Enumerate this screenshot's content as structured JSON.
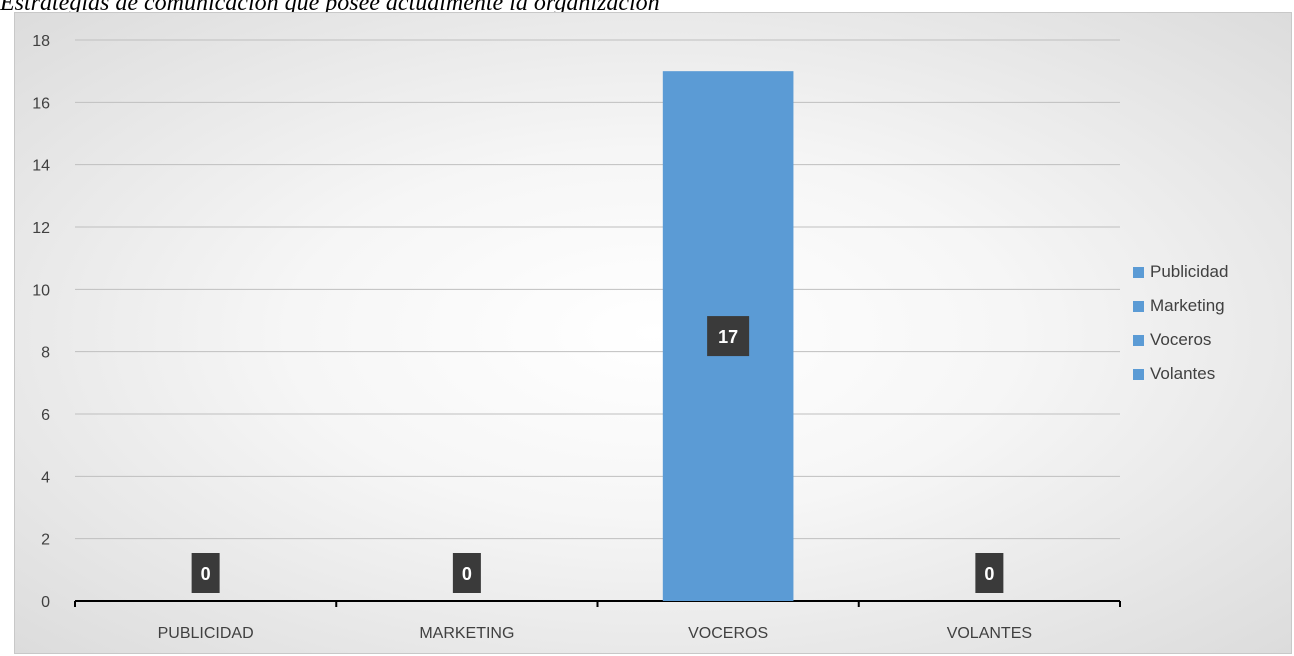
{
  "title": "Estrategias de comunicación que posee actualmente la organización",
  "colors": {
    "bar": "#5b9bd5",
    "label_bg": "#3a3a3a",
    "grid": "#bfbfbf",
    "axis": "#000000"
  },
  "chart_data": {
    "type": "bar",
    "categories": [
      "PUBLICIDAD",
      "MARKETING",
      "VOCEROS",
      "VOLANTES"
    ],
    "values": [
      0,
      0,
      17,
      0
    ],
    "data_labels": [
      "0",
      "0",
      "17",
      "0"
    ],
    "ylim": [
      0,
      18
    ],
    "yticks": [
      "0",
      "2",
      "4",
      "6",
      "8",
      "10",
      "12",
      "14",
      "16",
      "18"
    ],
    "legend": [
      "Publicidad",
      "Marketing",
      "Voceros",
      "Volantes"
    ],
    "legend_position": "right",
    "grid": true
  }
}
